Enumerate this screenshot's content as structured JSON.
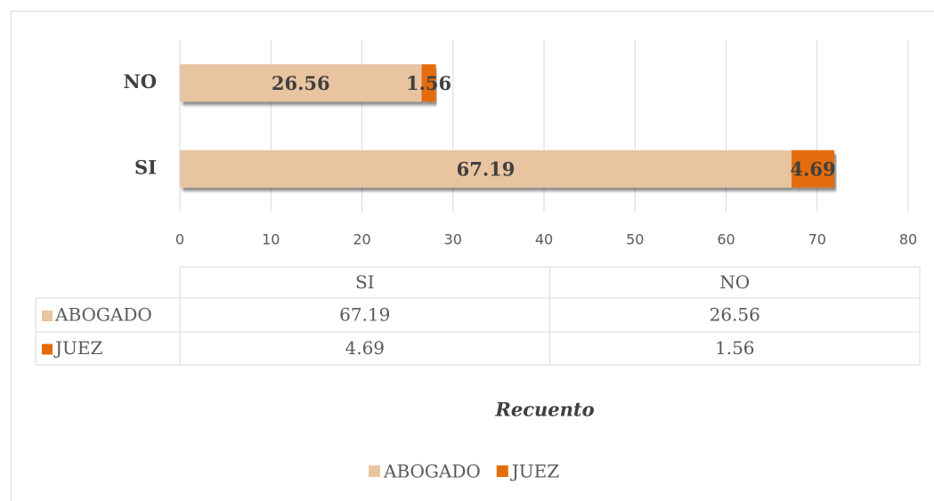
{
  "chart_data": {
    "type": "bar",
    "orientation": "horizontal",
    "stacked": true,
    "categories": [
      "SI",
      "NO"
    ],
    "series": [
      {
        "name": "ABOGADO",
        "color": "#e9c4a0",
        "values": [
          67.19,
          26.56
        ]
      },
      {
        "name": "JUEZ",
        "color": "#e46c0a",
        "values": [
          4.69,
          1.56
        ]
      }
    ],
    "xlim": [
      0,
      80
    ],
    "xticks": [
      0,
      10,
      20,
      30,
      40,
      50,
      60,
      70,
      80
    ],
    "xlabel": "Recuento",
    "grid": true,
    "legend": "bottom",
    "data_table": true
  }
}
